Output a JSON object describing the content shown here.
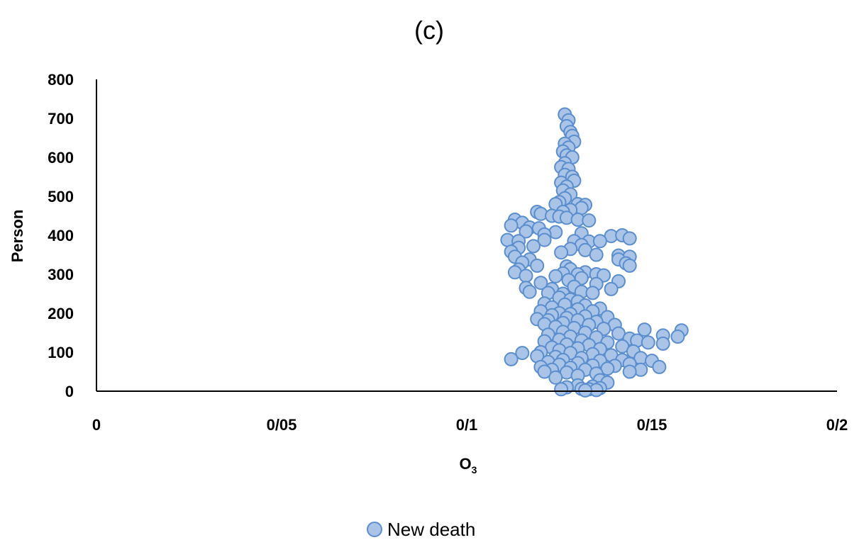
{
  "chart_data": {
    "type": "scatter",
    "title": "(c)",
    "xlabel": "O",
    "xlabel_sub": "3",
    "ylabel": "Person",
    "xlim": [
      0,
      0.2
    ],
    "ylim": [
      0,
      800
    ],
    "x_ticks": [
      0,
      0.05,
      0.1,
      0.15,
      0.2
    ],
    "x_tick_labels": [
      "0",
      "0/05",
      "0/1",
      "0/15",
      "0/2"
    ],
    "y_ticks": [
      0,
      100,
      200,
      300,
      400,
      500,
      600,
      700,
      800
    ],
    "y_tick_labels": [
      "0",
      "100",
      "200",
      "300",
      "400",
      "500",
      "600",
      "700",
      "800"
    ],
    "grid": false,
    "legend_position": "bottom-center",
    "marker_fill": "#a9c4e6",
    "marker_stroke": "#5b8ecf",
    "series": [
      {
        "name": "New death",
        "points": [
          [
            0.1265,
            710
          ],
          [
            0.1275,
            695
          ],
          [
            0.127,
            680
          ],
          [
            0.128,
            665
          ],
          [
            0.1285,
            655
          ],
          [
            0.129,
            640
          ],
          [
            0.1265,
            635
          ],
          [
            0.1275,
            625
          ],
          [
            0.126,
            615
          ],
          [
            0.127,
            605
          ],
          [
            0.1285,
            600
          ],
          [
            0.1265,
            585
          ],
          [
            0.1255,
            575
          ],
          [
            0.1275,
            570
          ],
          [
            0.1265,
            555
          ],
          [
            0.1285,
            550
          ],
          [
            0.129,
            540
          ],
          [
            0.1255,
            535
          ],
          [
            0.127,
            525
          ],
          [
            0.126,
            515
          ],
          [
            0.128,
            505
          ],
          [
            0.1265,
            495
          ],
          [
            0.125,
            485
          ],
          [
            0.124,
            480
          ],
          [
            0.13,
            480
          ],
          [
            0.132,
            478
          ],
          [
            0.131,
            470
          ],
          [
            0.128,
            465
          ],
          [
            0.126,
            460
          ],
          [
            0.119,
            460
          ],
          [
            0.12,
            455
          ],
          [
            0.123,
            450
          ],
          [
            0.125,
            448
          ],
          [
            0.127,
            445
          ],
          [
            0.13,
            440
          ],
          [
            0.133,
            438
          ],
          [
            0.113,
            440
          ],
          [
            0.115,
            432
          ],
          [
            0.112,
            425
          ],
          [
            0.117,
            420
          ],
          [
            0.1195,
            418
          ],
          [
            0.116,
            410
          ],
          [
            0.124,
            408
          ],
          [
            0.131,
            405
          ],
          [
            0.121,
            402
          ],
          [
            0.139,
            398
          ],
          [
            0.142,
            400
          ],
          [
            0.144,
            392
          ],
          [
            0.111,
            388
          ],
          [
            0.114,
            385
          ],
          [
            0.121,
            388
          ],
          [
            0.129,
            385
          ],
          [
            0.133,
            384
          ],
          [
            0.136,
            385
          ],
          [
            0.131,
            375
          ],
          [
            0.118,
            372
          ],
          [
            0.114,
            368
          ],
          [
            0.128,
            365
          ],
          [
            0.132,
            362
          ],
          [
            0.112,
            358
          ],
          [
            0.1255,
            356
          ],
          [
            0.135,
            350
          ],
          [
            0.141,
            348
          ],
          [
            0.144,
            345
          ],
          [
            0.113,
            345
          ],
          [
            0.117,
            338
          ],
          [
            0.141,
            338
          ],
          [
            0.143,
            328
          ],
          [
            0.144,
            322
          ],
          [
            0.115,
            330
          ],
          [
            0.119,
            322
          ],
          [
            0.127,
            320
          ],
          [
            0.128,
            313
          ],
          [
            0.114,
            312
          ],
          [
            0.113,
            305
          ],
          [
            0.132,
            305
          ],
          [
            0.126,
            302
          ],
          [
            0.13,
            300
          ],
          [
            0.135,
            300
          ],
          [
            0.116,
            296
          ],
          [
            0.124,
            295
          ],
          [
            0.137,
            297
          ],
          [
            0.131,
            290
          ],
          [
            0.1275,
            285
          ],
          [
            0.141,
            282
          ],
          [
            0.12,
            278
          ],
          [
            0.135,
            275
          ],
          [
            0.129,
            268
          ],
          [
            0.116,
            265
          ],
          [
            0.123,
            262
          ],
          [
            0.139,
            262
          ],
          [
            0.117,
            255
          ],
          [
            0.122,
            252
          ],
          [
            0.131,
            255
          ],
          [
            0.134,
            252
          ],
          [
            0.126,
            250
          ],
          [
            0.125,
            240
          ],
          [
            0.128,
            235
          ],
          [
            0.13,
            230
          ],
          [
            0.121,
            225
          ],
          [
            0.1265,
            222
          ],
          [
            0.132,
            220
          ],
          [
            0.123,
            215
          ],
          [
            0.136,
            212
          ],
          [
            0.13,
            210
          ],
          [
            0.12,
            205
          ],
          [
            0.134,
            205
          ],
          [
            0.125,
            200
          ],
          [
            0.128,
            198
          ],
          [
            0.123,
            195
          ],
          [
            0.132,
            192
          ],
          [
            0.138,
            190
          ],
          [
            0.127,
            188
          ],
          [
            0.119,
            185
          ],
          [
            0.122,
            182
          ],
          [
            0.13,
            182
          ],
          [
            0.135,
            178
          ],
          [
            0.126,
            175
          ],
          [
            0.121,
            172
          ],
          [
            0.133,
            170
          ],
          [
            0.14,
            170
          ],
          [
            0.124,
            165
          ],
          [
            0.129,
            162
          ],
          [
            0.137,
            160
          ],
          [
            0.148,
            158
          ],
          [
            0.158,
            156
          ],
          [
            0.126,
            152
          ],
          [
            0.132,
            150
          ],
          [
            0.141,
            148
          ],
          [
            0.122,
            145
          ],
          [
            0.153,
            143
          ],
          [
            0.157,
            140
          ],
          [
            0.128,
            140
          ],
          [
            0.135,
            138
          ],
          [
            0.144,
            135
          ],
          [
            0.125,
            132
          ],
          [
            0.131,
            130
          ],
          [
            0.146,
            130
          ],
          [
            0.121,
            128
          ],
          [
            0.149,
            125
          ],
          [
            0.138,
            125
          ],
          [
            0.153,
            122
          ],
          [
            0.127,
            120
          ],
          [
            0.133,
            118
          ],
          [
            0.142,
            115
          ],
          [
            0.123,
            112
          ],
          [
            0.13,
            110
          ],
          [
            0.136,
            108
          ],
          [
            0.125,
            105
          ],
          [
            0.145,
            102
          ],
          [
            0.12,
            100
          ],
          [
            0.115,
            98
          ],
          [
            0.128,
            98
          ],
          [
            0.134,
            95
          ],
          [
            0.139,
            92
          ],
          [
            0.119,
            90
          ],
          [
            0.124,
            88
          ],
          [
            0.131,
            85
          ],
          [
            0.147,
            85
          ],
          [
            0.112,
            82
          ],
          [
            0.126,
            80
          ],
          [
            0.142,
            80
          ],
          [
            0.136,
            78
          ],
          [
            0.15,
            78
          ],
          [
            0.122,
            75
          ],
          [
            0.13,
            72
          ],
          [
            0.144,
            70
          ],
          [
            0.125,
            68
          ],
          [
            0.134,
            66
          ],
          [
            0.14,
            65
          ],
          [
            0.12,
            62
          ],
          [
            0.152,
            62
          ],
          [
            0.128,
            60
          ],
          [
            0.138,
            58
          ],
          [
            0.123,
            55
          ],
          [
            0.132,
            55
          ],
          [
            0.147,
            55
          ],
          [
            0.121,
            50
          ],
          [
            0.144,
            50
          ],
          [
            0.127,
            48
          ],
          [
            0.135,
            45
          ],
          [
            0.13,
            40
          ],
          [
            0.124,
            35
          ],
          [
            0.136,
            28
          ],
          [
            0.138,
            22
          ],
          [
            0.13,
            15
          ],
          [
            0.134,
            12
          ],
          [
            0.127,
            10
          ],
          [
            0.136,
            8
          ],
          [
            0.131,
            6
          ],
          [
            0.133,
            5
          ],
          [
            0.1255,
            5
          ],
          [
            0.135,
            3
          ],
          [
            0.132,
            2
          ]
        ]
      }
    ]
  }
}
